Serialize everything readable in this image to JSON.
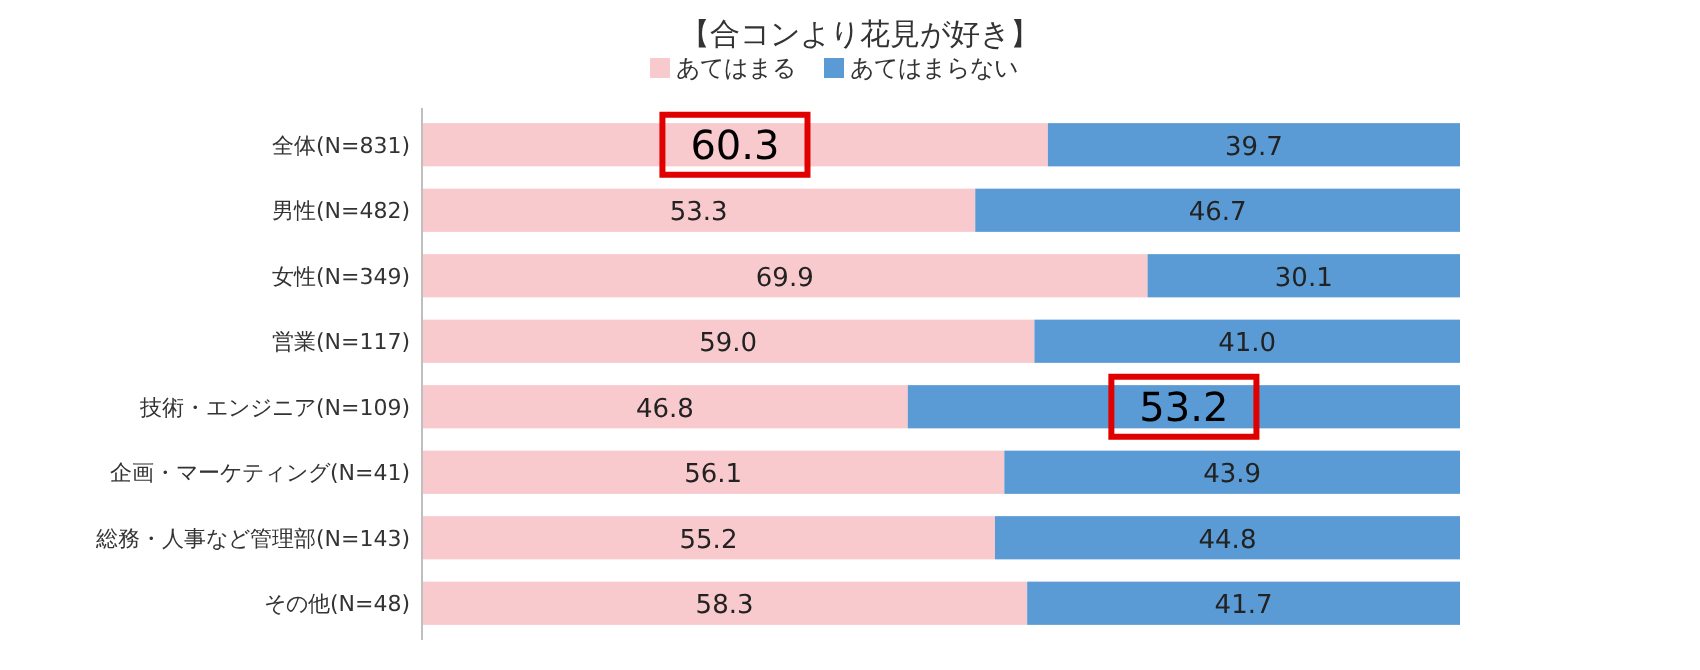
{
  "chart_data": {
    "type": "bar",
    "orientation": "horizontal",
    "stacked": true,
    "title": "【合コンより花見が好き】",
    "categories": [
      "全体(N=831)",
      "男性(N=482)",
      "女性(N=349)",
      "営業(N=117)",
      "技術・エンジニア(N=109)",
      "企画・マーケティング(N=41)",
      "総務・人事など管理部(N=143)",
      "その他(N=48)"
    ],
    "series": [
      {
        "name": "あてはまる",
        "color": "#f8c9cd",
        "values": [
          60.3,
          53.3,
          69.9,
          59.0,
          46.8,
          56.1,
          55.2,
          58.3
        ],
        "value_labels": [
          "60.3",
          "53.3",
          "69.9",
          "59.0",
          "46.8",
          "56.1",
          "55.2",
          "58.3"
        ]
      },
      {
        "name": "あてはまらない",
        "color": "#5b9bd5",
        "values": [
          39.7,
          46.7,
          30.1,
          41.0,
          53.2,
          43.9,
          44.8,
          41.7
        ],
        "value_labels": [
          "39.7",
          "46.7",
          "30.1",
          "41.0",
          "53.2",
          "43.9",
          "44.8",
          "41.7"
        ]
      }
    ],
    "legend": "top"
  }
}
